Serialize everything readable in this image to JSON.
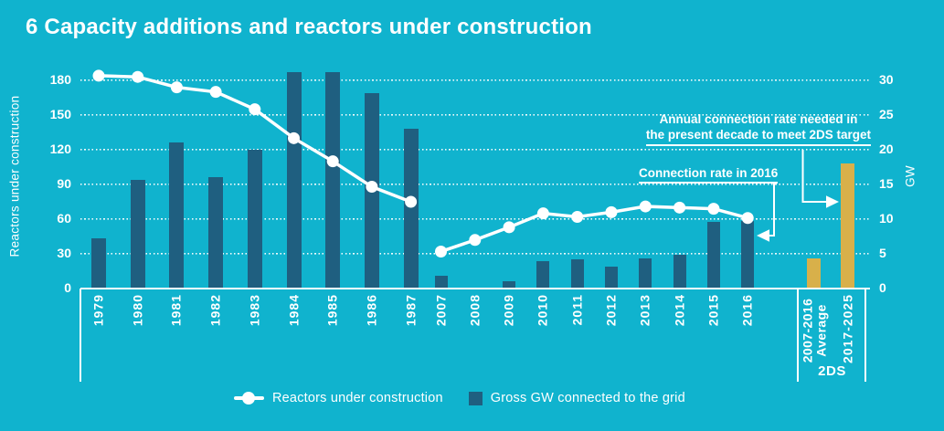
{
  "title": "6 Capacity additions and reactors under construction",
  "colors": {
    "background": "#10b3ce",
    "bar_historical": "#1f5f80",
    "bar_target": "#d8b04a",
    "line": "#ffffff",
    "text": "#ffffff"
  },
  "legend": {
    "line_label": "Reactors under construction",
    "bar_label": "Gross GW connected to the grid"
  },
  "annotations": {
    "target_rate": {
      "line1": "Annual connection rate needed in",
      "line2": "the present decade to meet 2DS target"
    },
    "rate_2016": "Connection rate in 2016"
  },
  "group_2ds_label": "2DS",
  "chart_data": {
    "type": "combo bar+line, dual axis",
    "title": "6 Capacity additions and reactors under construction",
    "left_axis": {
      "label": "Reactors under construction",
      "ticks": [
        0,
        30,
        60,
        90,
        120,
        150,
        180
      ],
      "applies_to": "line"
    },
    "right_axis": {
      "label": "GW",
      "ticks": [
        0,
        5,
        10,
        15,
        20,
        25,
        30
      ],
      "applies_to": "bars"
    },
    "bar_series_name": "Gross GW connected to the grid",
    "line_series_name": "Reactors under construction",
    "grid": "horizontal dotted",
    "legend_position": "bottom center",
    "points": [
      {
        "label": "1979",
        "group": "early",
        "gw": 7.2,
        "reactors": 184
      },
      {
        "label": "1980",
        "group": "early",
        "gw": 15.7,
        "reactors": 183
      },
      {
        "label": "1981",
        "group": "early",
        "gw": 21.1,
        "reactors": 174
      },
      {
        "label": "1982",
        "group": "early",
        "gw": 16,
        "reactors": 170
      },
      {
        "label": "1983",
        "group": "early",
        "gw": 20,
        "reactors": 155
      },
      {
        "label": "1984",
        "group": "early",
        "gw": 31.2,
        "reactors": 130
      },
      {
        "label": "1985",
        "group": "early",
        "gw": 31.2,
        "reactors": 110
      },
      {
        "label": "1986",
        "group": "early",
        "gw": 28.2,
        "reactors": 88
      },
      {
        "label": "1987",
        "group": "early",
        "gw": 23,
        "reactors": 75
      },
      {
        "label": "2007",
        "group": "recent",
        "gw": 1.9,
        "reactors": 32
      },
      {
        "label": "2008",
        "group": "recent",
        "gw": 0,
        "reactors": 42
      },
      {
        "label": "2009",
        "group": "recent",
        "gw": 1,
        "reactors": 53
      },
      {
        "label": "2010",
        "group": "recent",
        "gw": 3.9,
        "reactors": 65
      },
      {
        "label": "2011",
        "group": "recent",
        "gw": 4.2,
        "reactors": 62
      },
      {
        "label": "2012",
        "group": "recent",
        "gw": 3.1,
        "reactors": 66
      },
      {
        "label": "2013",
        "group": "recent",
        "gw": 4.3,
        "reactors": 71
      },
      {
        "label": "2014",
        "group": "recent",
        "gw": 4.9,
        "reactors": 70
      },
      {
        "label": "2015",
        "group": "recent",
        "gw": 9.6,
        "reactors": 69
      },
      {
        "label": "2016",
        "group": "recent",
        "gw": 9.7,
        "reactors": 61
      },
      {
        "label": "2007-2016\nAverage",
        "group": "target",
        "gw": 4.3,
        "reactors": null
      },
      {
        "label": "2017-2025",
        "group": "target",
        "gw": 18,
        "reactors": null
      }
    ]
  }
}
